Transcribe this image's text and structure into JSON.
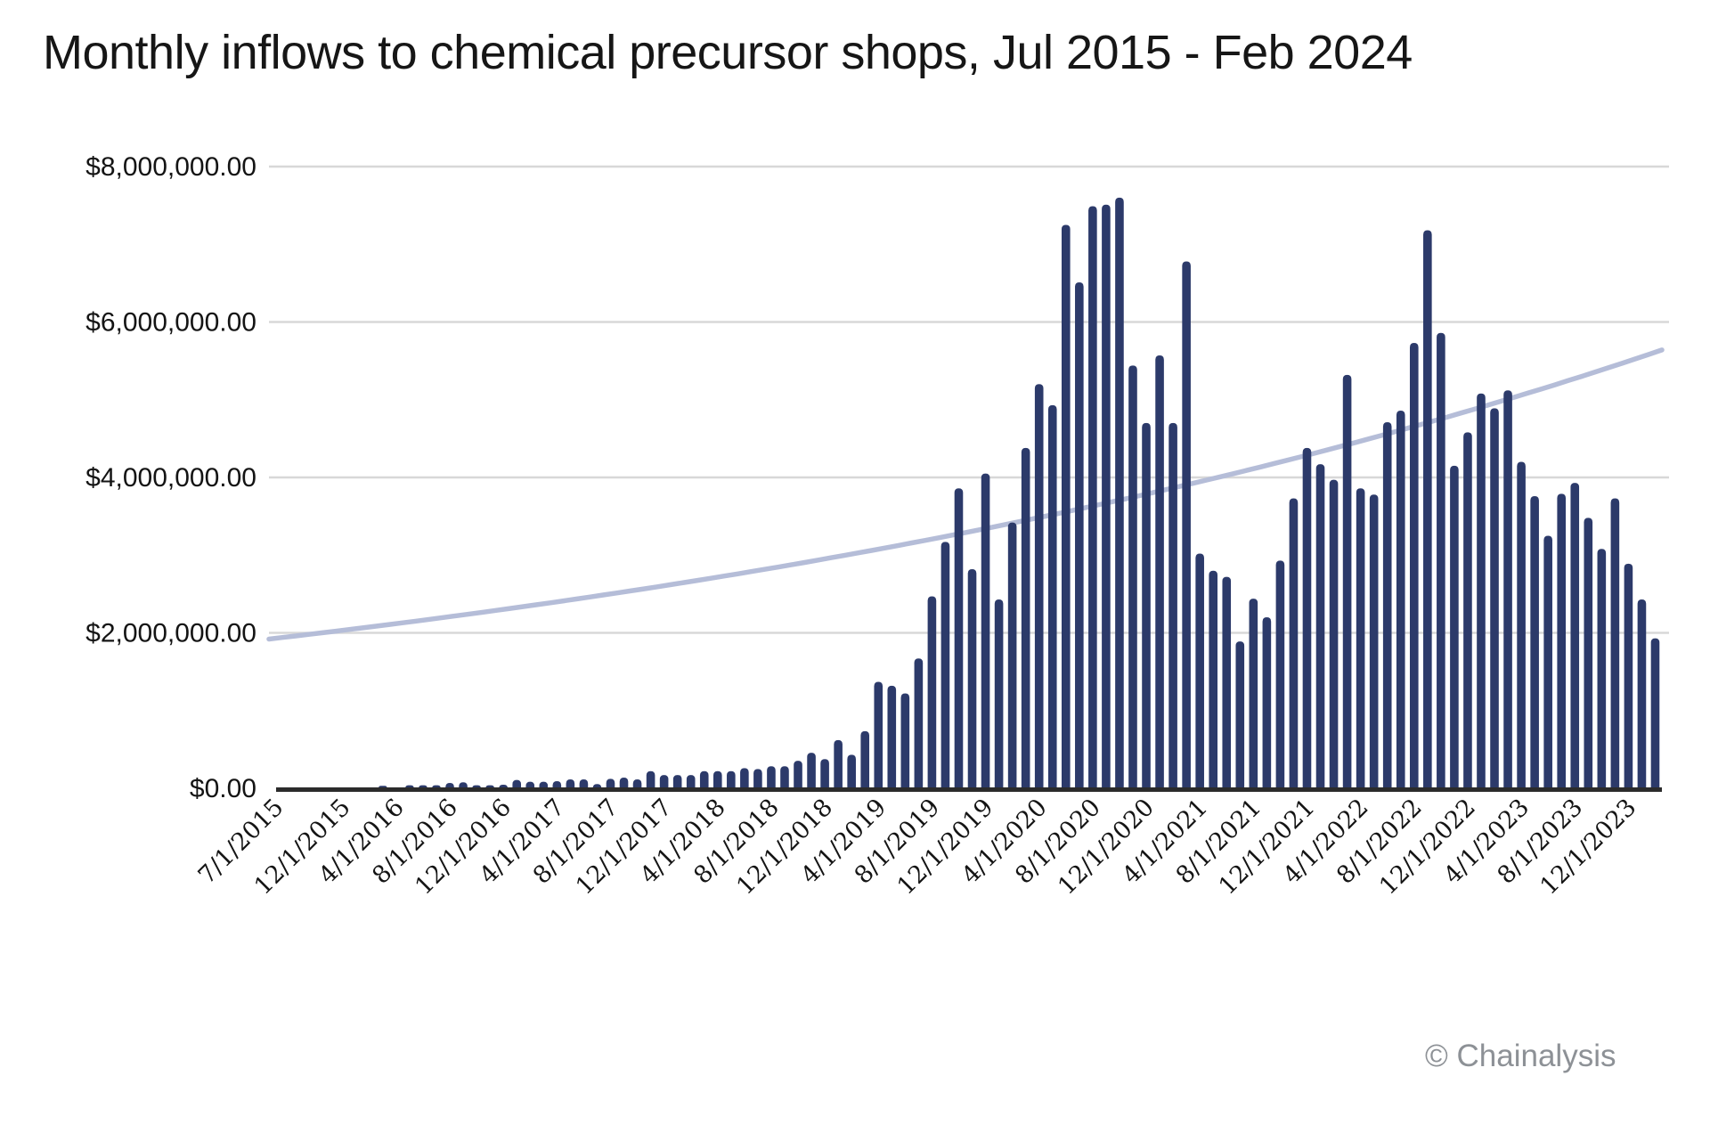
{
  "title": "Monthly inflows to chemical precursor shops, Jul 2015 - Feb 2024",
  "footer": {
    "credit": "© Chainalysis"
  },
  "chart_data": {
    "type": "bar",
    "title": "Monthly inflows to chemical precursor shops, Jul 2015 - Feb 2024",
    "xlabel": "",
    "ylabel": "",
    "ylim": [
      0,
      8000000
    ],
    "grid": "horizontal",
    "legend": "none",
    "bar_series_name": "Monthly inflows (USD)",
    "x": [
      "7/1/2015",
      "8/1/2015",
      "9/1/2015",
      "10/1/2015",
      "11/1/2015",
      "12/1/2015",
      "1/1/2016",
      "2/1/2016",
      "3/1/2016",
      "4/1/2016",
      "5/1/2016",
      "6/1/2016",
      "7/1/2016",
      "8/1/2016",
      "9/1/2016",
      "10/1/2016",
      "11/1/2016",
      "12/1/2016",
      "1/1/2017",
      "2/1/2017",
      "3/1/2017",
      "4/1/2017",
      "5/1/2017",
      "6/1/2017",
      "7/1/2017",
      "8/1/2017",
      "9/1/2017",
      "10/1/2017",
      "11/1/2017",
      "12/1/2017",
      "1/1/2018",
      "2/1/2018",
      "3/1/2018",
      "4/1/2018",
      "5/1/2018",
      "6/1/2018",
      "7/1/2018",
      "8/1/2018",
      "9/1/2018",
      "10/1/2018",
      "11/1/2018",
      "12/1/2018",
      "1/1/2019",
      "2/1/2019",
      "3/1/2019",
      "4/1/2019",
      "5/1/2019",
      "6/1/2019",
      "7/1/2019",
      "8/1/2019",
      "9/1/2019",
      "10/1/2019",
      "11/1/2019",
      "12/1/2019",
      "1/1/2020",
      "2/1/2020",
      "3/1/2020",
      "4/1/2020",
      "5/1/2020",
      "6/1/2020",
      "7/1/2020",
      "8/1/2020",
      "9/1/2020",
      "10/1/2020",
      "11/1/2020",
      "12/1/2020",
      "1/1/2021",
      "2/1/2021",
      "3/1/2021",
      "4/1/2021",
      "5/1/2021",
      "6/1/2021",
      "7/1/2021",
      "8/1/2021",
      "9/1/2021",
      "10/1/2021",
      "11/1/2021",
      "12/1/2021",
      "1/1/2022",
      "2/1/2022",
      "3/1/2022",
      "4/1/2022",
      "5/1/2022",
      "6/1/2022",
      "7/1/2022",
      "8/1/2022",
      "9/1/2022",
      "10/1/2022",
      "11/1/2022",
      "12/1/2022",
      "1/1/2023",
      "2/1/2023",
      "3/1/2023",
      "4/1/2023",
      "5/1/2023",
      "6/1/2023",
      "7/1/2023",
      "8/1/2023",
      "9/1/2023",
      "10/1/2023",
      "11/1/2023",
      "12/1/2023",
      "1/1/2024",
      "2/1/2024"
    ],
    "values": [
      0,
      0,
      0,
      0,
      0,
      0,
      0,
      0,
      31000,
      0,
      38000,
      38000,
      38000,
      69000,
      77000,
      38000,
      38000,
      46000,
      107000,
      84000,
      84000,
      92000,
      114000,
      114000,
      54000,
      122000,
      138000,
      115000,
      221000,
      171000,
      171000,
      171000,
      221000,
      221000,
      221000,
      260000,
      248000,
      283000,
      283000,
      354000,
      457000,
      375000,
      621000,
      431000,
      735000,
      1370000,
      1320000,
      1220000,
      1670000,
      2470000,
      3170000,
      3860000,
      2820000,
      4050000,
      2430000,
      3420000,
      4380000,
      5200000,
      4930000,
      7250000,
      6510000,
      7490000,
      7510000,
      7600000,
      5440000,
      4700000,
      5570000,
      4700000,
      6780000,
      3020000,
      2800000,
      2720000,
      1890000,
      2440000,
      2200000,
      2930000,
      3730000,
      4380000,
      4170000,
      3970000,
      5320000,
      3860000,
      3780000,
      4710000,
      4860000,
      5730000,
      7180000,
      5860000,
      4150000,
      4580000,
      5080000,
      4890000,
      5120000,
      4200000,
      3760000,
      3250000,
      3790000,
      3930000,
      3480000,
      3080000,
      3730000,
      2890000,
      2430000,
      1930000
    ],
    "x_ticks": [
      {
        "index": 0,
        "label": "7/1/2015"
      },
      {
        "index": 5,
        "label": "12/1/2015"
      },
      {
        "index": 9,
        "label": "4/1/2016"
      },
      {
        "index": 13,
        "label": "8/1/2016"
      },
      {
        "index": 17,
        "label": "12/1/2016"
      },
      {
        "index": 21,
        "label": "4/1/2017"
      },
      {
        "index": 25,
        "label": "8/1/2017"
      },
      {
        "index": 29,
        "label": "12/1/2017"
      },
      {
        "index": 33,
        "label": "4/1/2018"
      },
      {
        "index": 37,
        "label": "8/1/2018"
      },
      {
        "index": 41,
        "label": "12/1/2018"
      },
      {
        "index": 45,
        "label": "4/1/2019"
      },
      {
        "index": 49,
        "label": "8/1/2019"
      },
      {
        "index": 53,
        "label": "12/1/2019"
      },
      {
        "index": 57,
        "label": "4/1/2020"
      },
      {
        "index": 61,
        "label": "8/1/2020"
      },
      {
        "index": 65,
        "label": "12/1/2020"
      },
      {
        "index": 69,
        "label": "4/1/2021"
      },
      {
        "index": 73,
        "label": "8/1/2021"
      },
      {
        "index": 77,
        "label": "12/1/2021"
      },
      {
        "index": 81,
        "label": "4/1/2022"
      },
      {
        "index": 85,
        "label": "8/1/2022"
      },
      {
        "index": 89,
        "label": "12/1/2022"
      },
      {
        "index": 93,
        "label": "4/1/2023"
      },
      {
        "index": 97,
        "label": "8/1/2023"
      },
      {
        "index": 101,
        "label": "12/1/2023"
      }
    ],
    "y_ticks": [
      {
        "value": 0,
        "label": "$0.00"
      },
      {
        "value": 2000000,
        "label": "$2,000,000.00"
      },
      {
        "value": 4000000,
        "label": "$4,000,000.00"
      },
      {
        "value": 6000000,
        "label": "$6,000,000.00"
      },
      {
        "value": 8000000,
        "label": "$8,000,000.00"
      }
    ],
    "trendline": {
      "type": "exponential",
      "start_value": 1920000,
      "end_value": 5640000,
      "description": "smooth rising trend curve drawn behind the bars"
    },
    "colors": {
      "bar": "#2c3a6a",
      "trendline": "#b5bdd8",
      "gridline": "#d8d8d8",
      "axis": "#2b2b2b",
      "tick_text": "#141414",
      "credit_text": "#8d9196"
    }
  }
}
